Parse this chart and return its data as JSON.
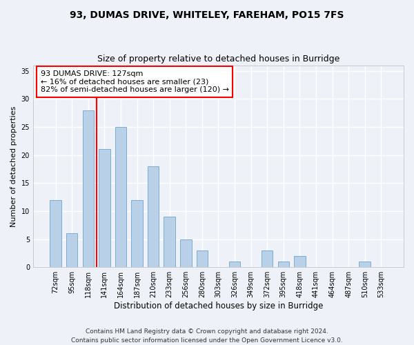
{
  "title1": "93, DUMAS DRIVE, WHITELEY, FAREHAM, PO15 7FS",
  "title2": "Size of property relative to detached houses in Burridge",
  "xlabel": "Distribution of detached houses by size in Burridge",
  "ylabel": "Number of detached properties",
  "categories": [
    "72sqm",
    "95sqm",
    "118sqm",
    "141sqm",
    "164sqm",
    "187sqm",
    "210sqm",
    "233sqm",
    "256sqm",
    "280sqm",
    "303sqm",
    "326sqm",
    "349sqm",
    "372sqm",
    "395sqm",
    "418sqm",
    "441sqm",
    "464sqm",
    "487sqm",
    "510sqm",
    "533sqm"
  ],
  "values": [
    12,
    6,
    28,
    21,
    25,
    12,
    18,
    9,
    5,
    3,
    0,
    1,
    0,
    3,
    1,
    2,
    0,
    0,
    0,
    1,
    0
  ],
  "bar_color": "#b8d0e8",
  "bar_edge_color": "#7aadd4",
  "vline_color": "red",
  "vline_x": 2.5,
  "annotation_text": "93 DUMAS DRIVE: 127sqm\n← 16% of detached houses are smaller (23)\n82% of semi-detached houses are larger (120) →",
  "annotation_box_color": "white",
  "annotation_box_edge": "red",
  "ylim": [
    0,
    36
  ],
  "yticks": [
    0,
    5,
    10,
    15,
    20,
    25,
    30,
    35
  ],
  "background_color": "#eef2f8",
  "grid_color": "white",
  "footer1": "Contains HM Land Registry data © Crown copyright and database right 2024.",
  "footer2": "Contains public sector information licensed under the Open Government Licence v3.0.",
  "title1_fontsize": 10,
  "title2_fontsize": 9,
  "xlabel_fontsize": 8.5,
  "ylabel_fontsize": 8,
  "tick_fontsize": 7,
  "annotation_fontsize": 8,
  "footer_fontsize": 6.5
}
